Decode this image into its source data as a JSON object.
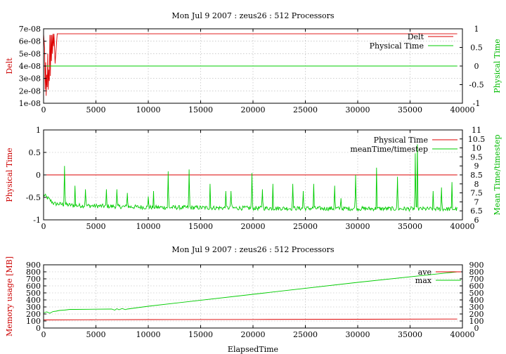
{
  "chart_data": [
    {
      "type": "line",
      "title": "Mon Jul 9 2007 : zeus26 : 512 Processors",
      "ylabel": "Delt",
      "y2label": "Physical Time",
      "xlim": [
        0,
        40000
      ],
      "ylim": [
        1e-08,
        7e-08
      ],
      "y2lim": [
        -1,
        1
      ],
      "grid": true,
      "legend_position": "top-right",
      "xticks": [
        "0",
        "5000",
        "10000",
        "15000",
        "20000",
        "25000",
        "30000",
        "35000",
        "40000"
      ],
      "yticks": [
        "1e-08",
        "2e-08",
        "3e-08",
        "4e-08",
        "5e-08",
        "6e-08",
        "7e-08"
      ],
      "y2ticks": [
        "-1",
        "-0.5",
        "0",
        "0.5",
        "1"
      ],
      "series": [
        {
          "name": "Delt",
          "color": "#dd0000",
          "axis": "y",
          "x": [
            0,
            100,
            150,
            200,
            250,
            300,
            350,
            400,
            450,
            500,
            550,
            600,
            650,
            700,
            750,
            800,
            850,
            900,
            950,
            1000,
            1100,
            1300,
            1500,
            3000,
            10000,
            20000,
            30000,
            39500
          ],
          "y": [
            6.6e-08,
            5.4e-08,
            2.1e-08,
            4.3e-08,
            1.6e-08,
            3.3e-08,
            2.3e-08,
            5e-08,
            2.1e-08,
            3.7e-08,
            2.8e-08,
            6.5e-08,
            3.2e-08,
            6.5e-08,
            4.4e-08,
            6.5e-08,
            5e-08,
            6.6e-08,
            5.6e-08,
            6.6e-08,
            4.2e-08,
            6.6e-08,
            6.6e-08,
            6.6e-08,
            6.6e-08,
            6.6e-08,
            6.6e-08,
            6.6e-08
          ]
        },
        {
          "name": "Physical Time",
          "color": "#00cc00",
          "axis": "y2",
          "x": [
            0,
            39500
          ],
          "y": [
            0,
            0
          ]
        }
      ]
    },
    {
      "type": "line",
      "title": "",
      "ylabel": "Physical Time",
      "y2label": "Mean Time/timestep",
      "xlim": [
        0,
        40000
      ],
      "ylim": [
        -1,
        1
      ],
      "y2lim": [
        6,
        11
      ],
      "grid": true,
      "legend_position": "top-right",
      "xticks": [
        "0",
        "5000",
        "10000",
        "15000",
        "20000",
        "25000",
        "30000",
        "35000",
        "40000"
      ],
      "yticks": [
        "-1",
        "-0.5",
        "0",
        "0.5",
        "1"
      ],
      "y2ticks": [
        "6",
        "6.5",
        "7",
        "7.5",
        "8",
        "8.5",
        "9",
        "9.5",
        "10",
        "10.5",
        "11"
      ],
      "series": [
        {
          "name": "Physical Time",
          "color": "#dd0000",
          "axis": "y",
          "x": [
            0,
            39500
          ],
          "y": [
            0,
            0
          ]
        },
        {
          "name": "meanTime/timestep",
          "color": "#00cc00",
          "axis": "y2",
          "base": [
            [
              0,
              7.4
            ],
            [
              1000,
              6.9
            ],
            [
              3000,
              6.8
            ],
            [
              10000,
              6.7
            ],
            [
              20000,
              6.65
            ],
            [
              39500,
              6.6
            ]
          ],
          "noise": 0.12,
          "spikes": [
            [
              2000,
              9.0
            ],
            [
              3000,
              7.9
            ],
            [
              4000,
              7.7
            ],
            [
              6000,
              7.7
            ],
            [
              7000,
              7.7
            ],
            [
              8000,
              7.5
            ],
            [
              10000,
              7.3
            ],
            [
              10500,
              7.6
            ],
            [
              11900,
              8.7
            ],
            [
              13900,
              8.8
            ],
            [
              15900,
              8.0
            ],
            [
              17400,
              7.6
            ],
            [
              17900,
              7.6
            ],
            [
              19900,
              8.6
            ],
            [
              20900,
              7.7
            ],
            [
              21900,
              8.0
            ],
            [
              23800,
              8.0
            ],
            [
              24800,
              7.6
            ],
            [
              25800,
              8.0
            ],
            [
              27800,
              7.9
            ],
            [
              28400,
              7.2
            ],
            [
              29800,
              8.5
            ],
            [
              31800,
              8.9
            ],
            [
              33800,
              8.4
            ],
            [
              35500,
              9.7
            ],
            [
              35700,
              10.2
            ],
            [
              37200,
              7.6
            ],
            [
              38000,
              7.8
            ],
            [
              39000,
              8.1
            ]
          ]
        }
      ]
    },
    {
      "type": "line",
      "title": "Mon Jul 9 2007 : zeus26 : 512 Processors",
      "xlabel": "ElapsedTime",
      "ylabel": "Memory usage [MB]",
      "xlim": [
        0,
        40000
      ],
      "ylim": [
        0,
        900
      ],
      "y2lim": [
        0,
        900
      ],
      "grid": true,
      "legend_position": "top-right",
      "xticks": [
        "0",
        "5000",
        "10000",
        "15000",
        "20000",
        "25000",
        "30000",
        "35000",
        "40000"
      ],
      "yticks": [
        "0",
        "100",
        "200",
        "300",
        "400",
        "500",
        "600",
        "700",
        "800",
        "900"
      ],
      "y2ticks": [
        "0",
        "100",
        "200",
        "300",
        "400",
        "500",
        "600",
        "700",
        "800",
        "900"
      ],
      "series": [
        {
          "name": "ave",
          "color": "#dd0000",
          "axis": "y",
          "x": [
            0,
            5000,
            10000,
            20000,
            30000,
            39500
          ],
          "y": [
            115,
            118,
            120,
            122,
            125,
            128
          ]
        },
        {
          "name": "max",
          "color": "#00cc00",
          "axis": "y",
          "x": [
            0,
            300,
            600,
            900,
            1200,
            1500,
            2000,
            2500,
            3000,
            5000,
            6500,
            6800,
            7000,
            7200,
            7500,
            7800,
            8000,
            10000,
            20000,
            30000,
            39500
          ],
          "y": [
            215,
            230,
            210,
            235,
            240,
            250,
            255,
            265,
            265,
            268,
            270,
            255,
            275,
            260,
            278,
            262,
            270,
            310,
            480,
            650,
            800
          ]
        }
      ]
    }
  ]
}
